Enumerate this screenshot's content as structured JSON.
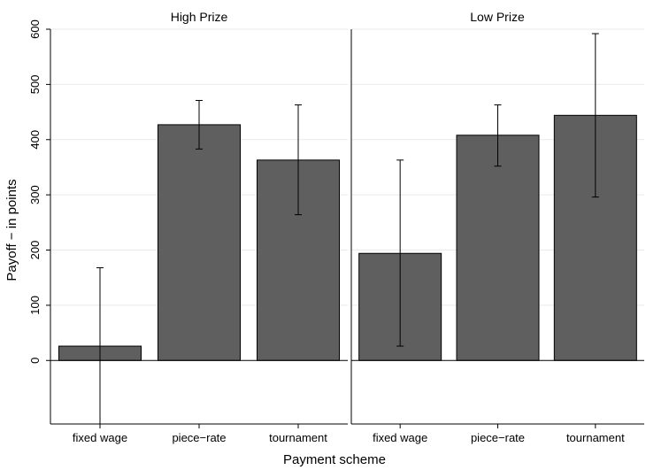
{
  "chart_data": {
    "type": "bar",
    "xlabel": "Payment scheme",
    "ylabel": "Payoff − in points",
    "ylim": [
      -115,
      600
    ],
    "yticks": [
      0,
      100,
      200,
      300,
      400,
      500,
      600
    ],
    "grid": true,
    "legend": "none",
    "colors": {
      "bar": "#5f5f5f",
      "grid": "#eaeaea",
      "axis": "#000000"
    },
    "categories": [
      "fixed wage",
      "piece−rate",
      "tournament"
    ],
    "panels": [
      {
        "title": "High Prize",
        "values": [
          26,
          427,
          363
        ],
        "ci_low": [
          -115,
          383,
          264
        ],
        "ci_high": [
          168,
          471,
          463
        ]
      },
      {
        "title": "Low Prize",
        "values": [
          194,
          408,
          444
        ],
        "ci_low": [
          26,
          352,
          296
        ],
        "ci_high": [
          363,
          463,
          592
        ]
      }
    ]
  }
}
